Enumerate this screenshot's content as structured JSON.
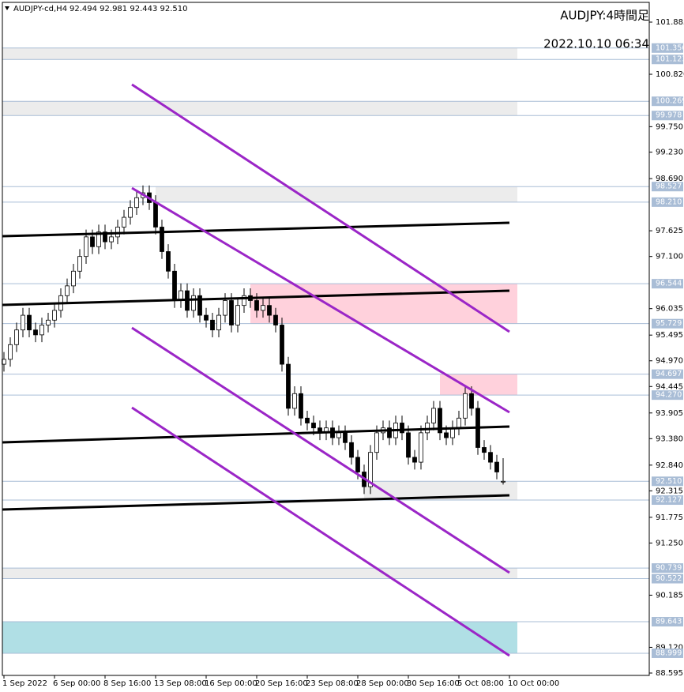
{
  "header": {
    "symbol": "AUDJPY-cd,H4",
    "ohlc": "92.494 92.981 92.443 92.510"
  },
  "caption": {
    "pair": "AUDJPY:4時間足",
    "time": "2022.10.10 06:34"
  },
  "chart_data": {
    "type": "candlestick",
    "ylim": [
      88.595,
      101.885
    ],
    "yticks": [
      101.885,
      {
        "value": 100.82,
        "label": "100.820"
      },
      {
        "value": 99.75,
        "label": "99.750"
      },
      {
        "value": 99.23,
        "label": "99.230"
      },
      {
        "value": 98.69,
        "label": "98.690"
      },
      97.625,
      {
        "value": 97.1,
        "label": "97.100"
      },
      96.035,
      95.495,
      {
        "value": 94.97,
        "label": "94.970"
      },
      94.445,
      93.905,
      {
        "value": 93.38,
        "label": "93.380"
      },
      {
        "value": 92.84,
        "label": "92.840"
      },
      92.315,
      91.775,
      {
        "value": 91.25,
        "label": "91.250"
      },
      90.185,
      {
        "value": 89.12,
        "label": "89.120"
      },
      88.595
    ],
    "xticks": [
      {
        "value": 0,
        "label": "1 Sep 2022"
      },
      {
        "value": 8,
        "label": "6 Sep 00:00"
      },
      {
        "value": 16,
        "label": "8 Sep 16:00"
      },
      {
        "value": 24,
        "label": "13 Sep 08:00"
      },
      {
        "value": 32,
        "label": "16 Sep 00:00"
      },
      {
        "value": 40,
        "label": "20 Sep 16:00"
      },
      {
        "value": 48,
        "label": "23 Sep 08:00"
      },
      {
        "value": 56,
        "label": "28 Sep 00:00"
      },
      {
        "value": 64,
        "label": "30 Sep 16:00"
      },
      {
        "value": 72,
        "label": "5 Oct 08:00"
      },
      {
        "value": 80,
        "label": "10 Oct 00:00"
      }
    ],
    "candles": {
      "open": [
        94.9,
        95.0,
        95.3,
        95.6,
        95.9,
        95.6,
        95.5,
        95.7,
        95.8,
        96.0,
        96.3,
        96.5,
        96.8,
        97.1,
        97.5,
        97.3,
        97.6,
        97.4,
        97.5,
        97.7,
        97.9,
        98.1,
        98.3,
        98.4,
        98.2,
        97.7,
        97.2,
        96.8,
        96.2,
        96.4,
        96.0,
        96.3,
        95.9,
        95.8,
        95.6,
        95.9,
        96.2,
        95.7,
        96.1,
        96.3,
        96.2,
        96.0,
        96.1,
        95.9,
        95.7,
        94.9,
        94.0,
        94.3,
        93.8,
        93.7,
        93.6,
        93.5,
        93.6,
        93.4,
        93.5,
        93.3,
        93.0,
        92.7,
        92.4,
        93.1,
        93.5,
        93.6,
        93.4,
        93.7,
        93.5,
        93.0,
        92.9,
        93.5,
        93.7,
        94.0,
        93.5,
        93.4,
        93.6,
        93.8,
        94.3,
        94.0,
        93.2,
        93.1,
        92.9,
        92.494
      ],
      "high": [
        95.15,
        95.45,
        95.75,
        96.05,
        96.05,
        95.75,
        95.85,
        95.95,
        96.15,
        96.45,
        96.65,
        96.95,
        97.25,
        97.65,
        97.65,
        97.75,
        97.75,
        97.65,
        97.85,
        98.05,
        98.25,
        98.45,
        98.55,
        98.55,
        98.35,
        97.85,
        97.35,
        96.95,
        96.55,
        96.55,
        96.45,
        96.45,
        96.05,
        95.95,
        96.05,
        96.35,
        96.35,
        96.25,
        96.45,
        96.45,
        96.35,
        96.25,
        96.25,
        96.05,
        95.85,
        95.05,
        94.45,
        94.45,
        93.95,
        93.85,
        93.75,
        93.75,
        93.75,
        93.65,
        93.65,
        93.45,
        93.15,
        92.85,
        93.25,
        93.65,
        93.75,
        93.75,
        93.85,
        93.85,
        93.65,
        93.15,
        93.65,
        93.85,
        94.15,
        94.15,
        93.65,
        93.75,
        93.95,
        94.45,
        94.45,
        94.15,
        93.35,
        93.25,
        93.05,
        92.981
      ],
      "low": [
        94.75,
        94.85,
        95.15,
        95.45,
        95.45,
        95.35,
        95.35,
        95.55,
        95.65,
        95.85,
        96.15,
        96.35,
        96.65,
        96.95,
        97.15,
        97.15,
        97.25,
        97.25,
        97.35,
        97.55,
        97.75,
        97.95,
        98.15,
        98.05,
        97.55,
        97.05,
        96.65,
        96.05,
        96.05,
        95.85,
        95.85,
        95.75,
        95.65,
        95.45,
        95.45,
        95.75,
        95.55,
        95.55,
        95.95,
        96.05,
        95.85,
        95.85,
        95.75,
        95.55,
        94.75,
        93.85,
        93.85,
        93.65,
        93.55,
        93.45,
        93.35,
        93.35,
        93.25,
        93.25,
        93.15,
        92.85,
        92.55,
        92.25,
        92.25,
        92.95,
        93.35,
        93.25,
        93.25,
        93.35,
        92.85,
        92.75,
        92.75,
        93.35,
        93.55,
        93.35,
        93.25,
        93.25,
        93.45,
        93.65,
        93.85,
        93.05,
        92.95,
        92.75,
        92.55,
        92.443
      ],
      "close": [
        95.0,
        95.3,
        95.6,
        95.9,
        95.6,
        95.5,
        95.7,
        95.8,
        96.0,
        96.3,
        96.5,
        96.8,
        97.1,
        97.5,
        97.3,
        97.6,
        97.4,
        97.5,
        97.7,
        97.9,
        98.1,
        98.3,
        98.4,
        98.2,
        97.7,
        97.2,
        96.8,
        96.2,
        96.4,
        96.0,
        96.3,
        95.9,
        95.8,
        95.6,
        95.9,
        96.2,
        95.7,
        96.1,
        96.3,
        96.2,
        96.0,
        96.1,
        95.9,
        95.7,
        94.9,
        94.0,
        94.3,
        93.8,
        93.7,
        93.6,
        93.5,
        93.6,
        93.4,
        93.5,
        93.3,
        93.0,
        92.7,
        92.4,
        93.1,
        93.5,
        93.6,
        93.4,
        93.7,
        93.5,
        93.0,
        92.9,
        93.5,
        93.7,
        94.0,
        93.5,
        93.4,
        93.6,
        93.8,
        94.3,
        94.0,
        93.2,
        93.1,
        92.9,
        92.7,
        92.51
      ]
    },
    "levels": [
      101.356,
      101.123,
      100.269,
      99.978,
      98.527,
      {
        "value": 98.21,
        "label": "98.210"
      },
      96.544,
      95.729,
      94.697,
      {
        "value": 94.27,
        "label": "94.270"
      },
      {
        "value": 92.51,
        "label": "92.510"
      },
      92.127,
      90.739,
      90.522,
      89.643,
      88.999
    ],
    "zones": [
      {
        "from": 101.356,
        "to": 101.123,
        "color": "#ececec",
        "start": 0
      },
      {
        "from": 100.269,
        "to": 99.978,
        "color": "#ececec",
        "start": 0
      },
      {
        "from": 98.527,
        "to": 98.21,
        "color": "#ececec",
        "start": 24
      },
      {
        "from": 96.544,
        "to": 95.729,
        "color": "#ffd1dc",
        "start": 39
      },
      {
        "from": 94.697,
        "to": 94.27,
        "color": "#ffd1dc",
        "start": 69
      },
      {
        "from": 92.51,
        "to": 92.127,
        "color": "#ececec",
        "start": 57
      },
      {
        "from": 90.739,
        "to": 90.522,
        "color": "#ececec",
        "start": 0
      },
      {
        "from": 89.643,
        "to": 88.999,
        "color": "#b0dfe5",
        "start": 0
      }
    ]
  }
}
